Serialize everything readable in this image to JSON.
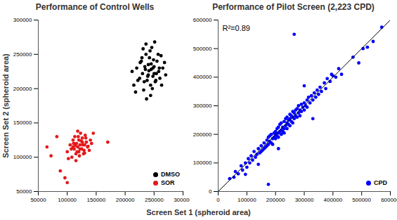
{
  "chart_data": [
    {
      "type": "scatter",
      "title": "Performance of Control Wells",
      "xlabel": "Screen Set 1 (spheroid area)",
      "ylabel": "Screen Set 2 (spheroid area)",
      "xlim": [
        50000,
        300000
      ],
      "ylim": [
        50000,
        300000
      ],
      "xticks": [
        50000,
        100000,
        150000,
        200000,
        250000,
        300000
      ],
      "yticks": [
        50000,
        100000,
        150000,
        200000,
        250000,
        300000
      ],
      "legend": "bottom-right",
      "marker": "circle",
      "series": [
        {
          "name": "DMSO",
          "color": "#000000",
          "x": [
            215000,
            220000,
            225000,
            228000,
            230000,
            232000,
            235000,
            236000,
            238000,
            240000,
            240000,
            242000,
            244000,
            245000,
            246000,
            248000,
            250000,
            252000,
            255000,
            258000,
            260000,
            262000,
            265000,
            270000,
            212000,
            218000,
            226000,
            233000,
            237000,
            241000,
            243000,
            247000,
            249000,
            251000,
            254000,
            257000,
            263000,
            268000,
            222000,
            229000,
            234000,
            239000,
            245000,
            253000,
            259000,
            231000,
            244000,
            250000,
            236000,
            248000
          ],
          "values": [
            205000,
            230000,
            215000,
            240000,
            222000,
            198000,
            228000,
            250000,
            212000,
            235000,
            220000,
            245000,
            205000,
            228000,
            260000,
            218000,
            232000,
            210000,
            240000,
            225000,
            215000,
            248000,
            230000,
            220000,
            225000,
            195000,
            238000,
            210000,
            185000,
            226000,
            255000,
            200000,
            242000,
            268000,
            222000,
            250000,
            205000,
            238000,
            212000,
            245000,
            232000,
            218000,
            236000,
            212000,
            230000,
            258000,
            190000,
            222000,
            265000,
            230000
          ]
        },
        {
          "name": "SOR",
          "color": "#e41a1c",
          "x": [
            100000,
            105000,
            108000,
            110000,
            112000,
            113000,
            115000,
            116000,
            118000,
            120000,
            120000,
            122000,
            123000,
            125000,
            126000,
            128000,
            130000,
            132000,
            135000,
            138000,
            140000,
            142000,
            145000,
            102000,
            107000,
            111000,
            114000,
            117000,
            119000,
            121000,
            124000,
            127000,
            129000,
            131000,
            133000,
            136000,
            118000,
            115000,
            122000,
            126000,
            110000,
            130000,
            65000,
            72000,
            88000,
            96000,
            100000,
            170000,
            82000,
            112000
          ],
          "values": [
            108000,
            118000,
            100000,
            125000,
            112000,
            130000,
            105000,
            120000,
            115000,
            125000,
            108000,
            118000,
            135000,
            112000,
            122000,
            105000,
            118000,
            128000,
            115000,
            110000,
            125000,
            120000,
            135000,
            98000,
            112000,
            120000,
            117000,
            108000,
            130000,
            102000,
            124000,
            118000,
            110000,
            132000,
            122000,
            116000,
            138000,
            95000,
            112000,
            128000,
            115000,
            106000,
            115000,
            102000,
            80000,
            70000,
            63000,
            122000,
            130000,
            120000
          ]
        }
      ]
    },
    {
      "type": "scatter",
      "title": "Performance of Pilot Screen (2,223 CPD)",
      "annotation": "R²=0.89",
      "xlim": [
        0,
        600000
      ],
      "ylim": [
        0,
        600000
      ],
      "xticks": [
        0,
        100000,
        200000,
        300000,
        400000,
        500000,
        600000
      ],
      "yticks": [
        0,
        100000,
        200000,
        300000,
        400000,
        500000,
        600000
      ],
      "legend": "bottom-right",
      "marker": "circle",
      "series": [
        {
          "name": "CPD",
          "color": "#0000ff",
          "x": [
            40000,
            55000,
            60000,
            70000,
            80000,
            85000,
            95000,
            100000,
            105000,
            110000,
            115000,
            120000,
            125000,
            130000,
            135000,
            140000,
            145000,
            150000,
            150000,
            155000,
            160000,
            160000,
            165000,
            170000,
            170000,
            175000,
            175000,
            180000,
            180000,
            185000,
            185000,
            190000,
            190000,
            195000,
            195000,
            200000,
            200000,
            200000,
            205000,
            205000,
            210000,
            210000,
            210000,
            215000,
            215000,
            220000,
            220000,
            220000,
            225000,
            225000,
            230000,
            230000,
            230000,
            235000,
            235000,
            240000,
            240000,
            240000,
            245000,
            245000,
            250000,
            250000,
            250000,
            255000,
            255000,
            260000,
            260000,
            260000,
            265000,
            265000,
            270000,
            270000,
            275000,
            275000,
            280000,
            280000,
            285000,
            285000,
            290000,
            290000,
            295000,
            300000,
            300000,
            305000,
            310000,
            310000,
            315000,
            320000,
            325000,
            330000,
            335000,
            340000,
            345000,
            350000,
            355000,
            360000,
            370000,
            375000,
            380000,
            390000,
            395000,
            400000,
            410000,
            420000,
            430000,
            470000,
            490000,
            505000,
            520000,
            540000,
            570000,
            265000,
            175000,
            140000,
            330000,
            95000,
            210000,
            300000
          ],
          "values": [
            45000,
            50000,
            70000,
            62000,
            90000,
            75000,
            100000,
            85000,
            115000,
            100000,
            125000,
            110000,
            140000,
            120000,
            130000,
            150000,
            135000,
            160000,
            140000,
            145000,
            170000,
            150000,
            155000,
            180000,
            160000,
            165000,
            190000,
            175000,
            195000,
            170000,
            200000,
            185000,
            165000,
            205000,
            190000,
            210000,
            185000,
            200000,
            195000,
            220000,
            205000,
            225000,
            190000,
            210000,
            235000,
            215000,
            200000,
            240000,
            225000,
            210000,
            245000,
            220000,
            205000,
            230000,
            255000,
            240000,
            220000,
            260000,
            235000,
            250000,
            255000,
            230000,
            270000,
            245000,
            265000,
            260000,
            240000,
            280000,
            255000,
            275000,
            265000,
            285000,
            260000,
            290000,
            275000,
            300000,
            285000,
            265000,
            305000,
            280000,
            295000,
            310000,
            285000,
            300000,
            320000,
            295000,
            330000,
            310000,
            335000,
            320000,
            345000,
            330000,
            355000,
            340000,
            365000,
            350000,
            380000,
            360000,
            395000,
            385000,
            410000,
            405000,
            400000,
            430000,
            410000,
            470000,
            450000,
            500000,
            505000,
            525000,
            575000,
            550000,
            25000,
            95000,
            255000,
            60000,
            150000,
            370000
          ]
        },
        {
          "type": "line",
          "color": "#000000",
          "x": [
            0,
            600000
          ],
          "values": [
            0,
            600000
          ]
        }
      ]
    }
  ]
}
